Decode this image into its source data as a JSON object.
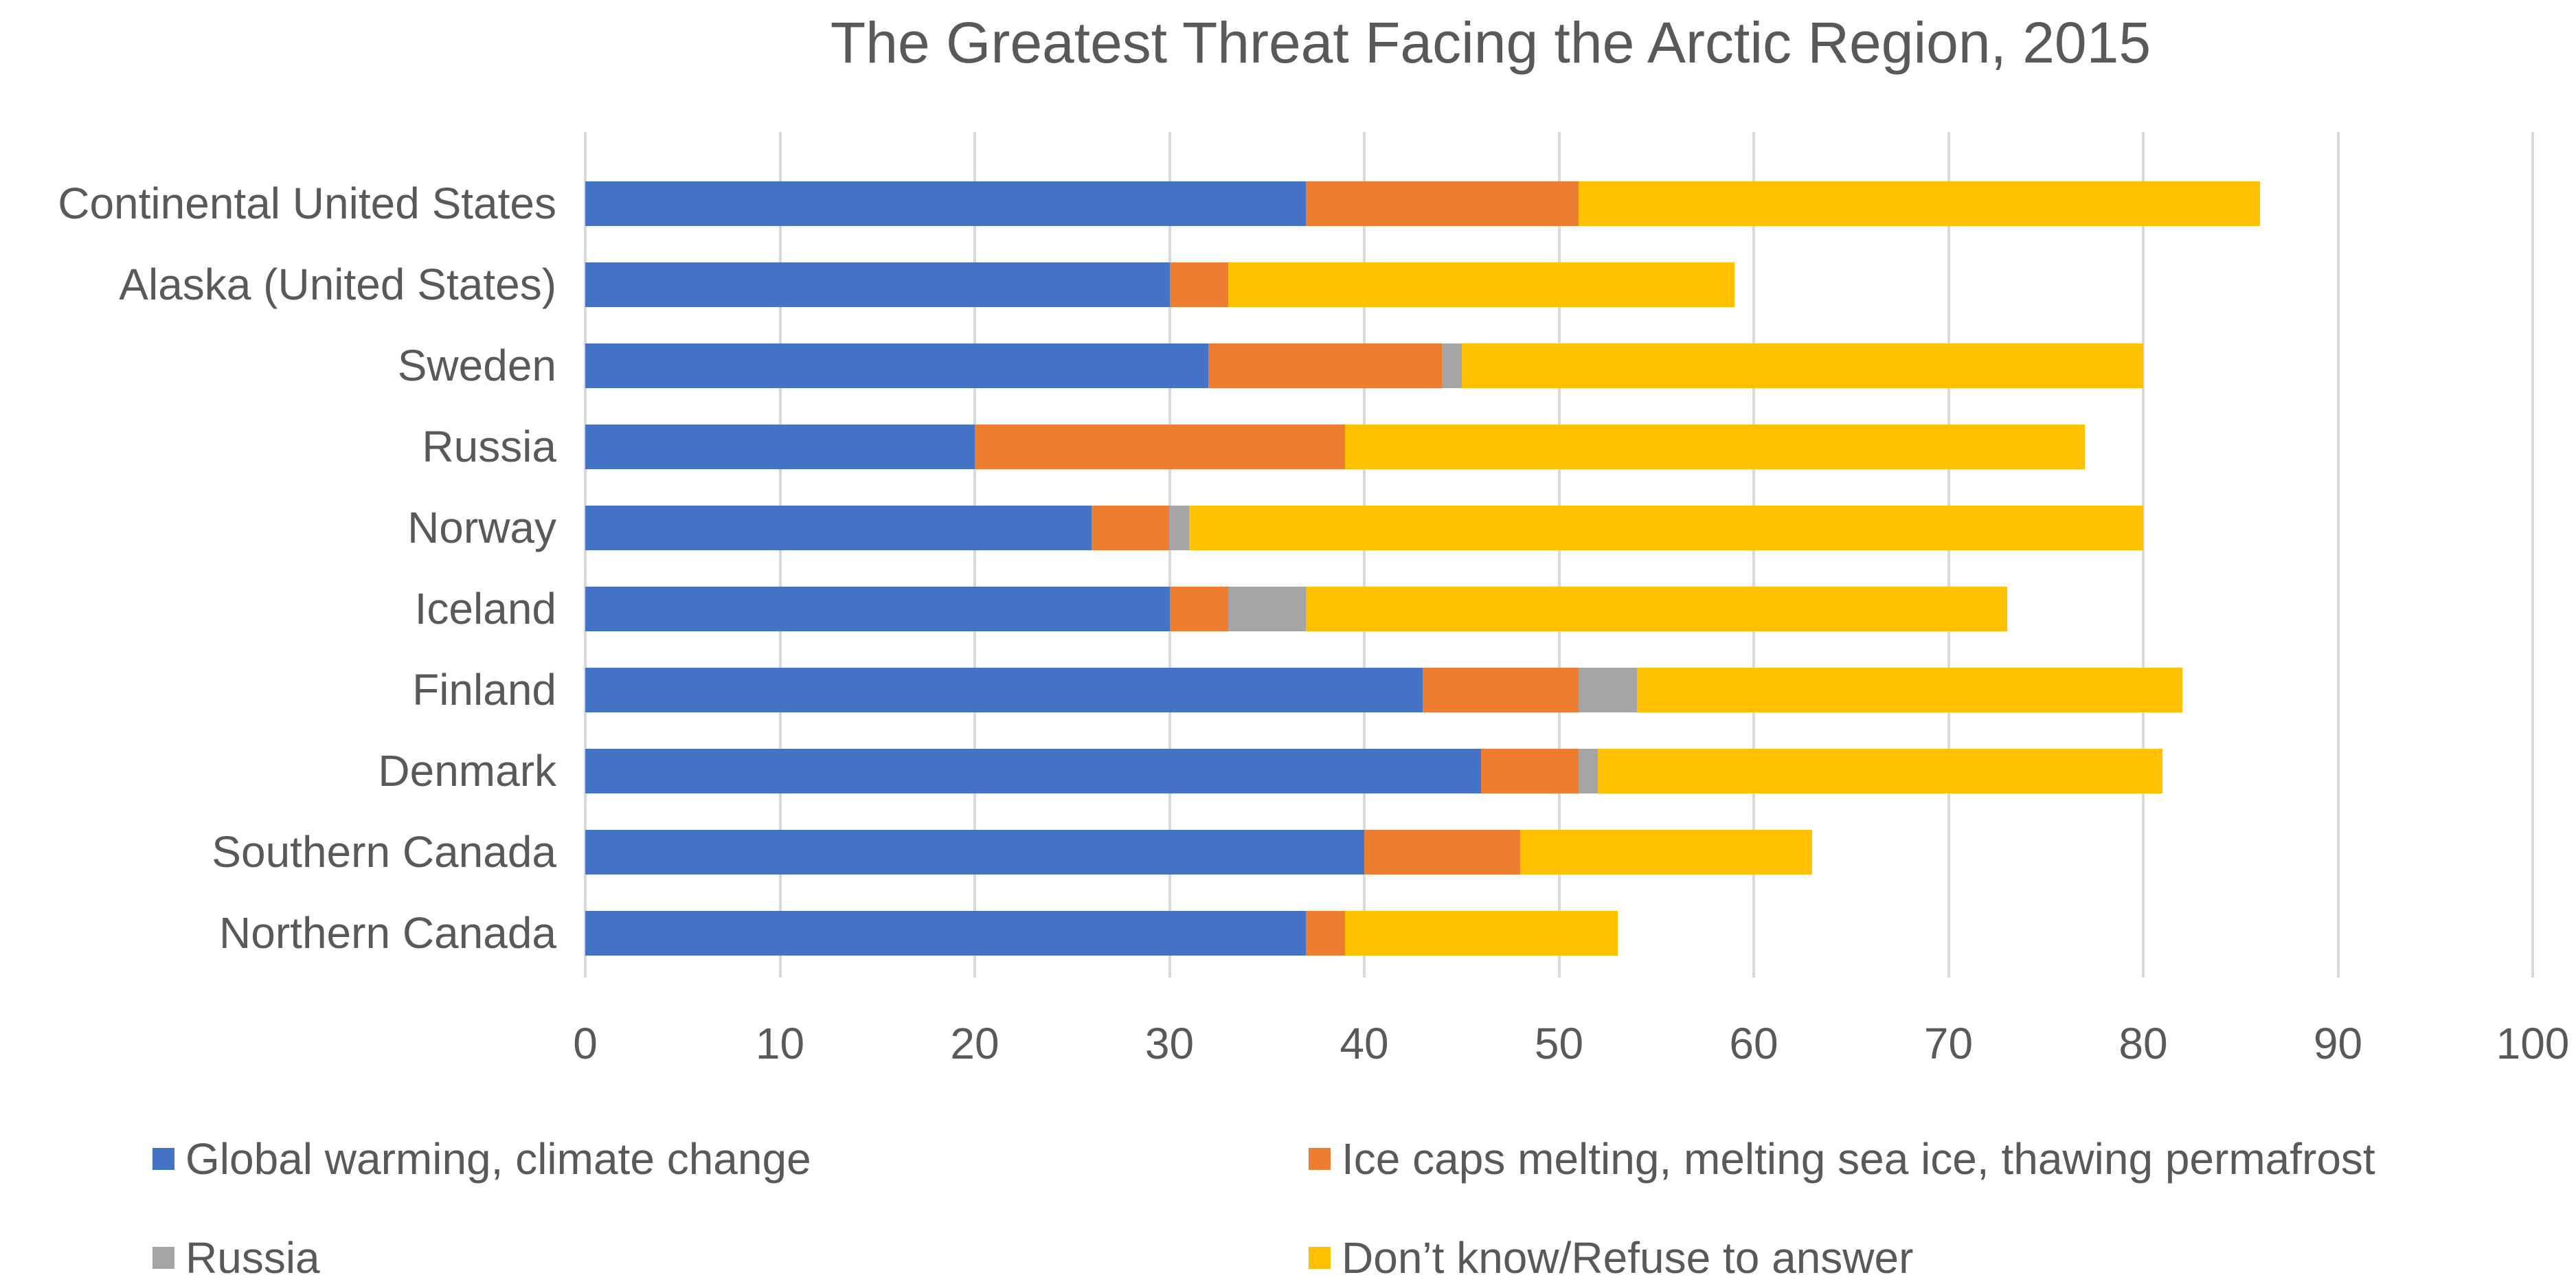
{
  "colors": {
    "background": "#FFFFFF",
    "grid": "#D9D9D9",
    "text": "#595959"
  },
  "chart_data": {
    "type": "bar",
    "stacked": true,
    "orientation": "horizontal",
    "title": "The Greatest Threat Facing the Arctic Region, 2015",
    "categories": [
      "Continental United States",
      "Alaska (United States)",
      "Sweden",
      "Russia",
      "Norway",
      "Iceland",
      "Finland",
      "Denmark",
      "Southern Canada",
      "Northern Canada"
    ],
    "series": [
      {
        "name": "Global warming, climate change",
        "color": "#4472C4",
        "values": [
          37,
          30,
          32,
          20,
          26,
          30,
          43,
          46,
          40,
          37
        ]
      },
      {
        "name": "Ice caps melting, melting sea ice, thawing permafrost",
        "color": "#ED7D31",
        "values": [
          14,
          3,
          12,
          19,
          4,
          3,
          8,
          5,
          8,
          2
        ]
      },
      {
        "name": "Russia",
        "color": "#A5A5A5",
        "values": [
          0,
          0,
          1,
          0,
          1,
          4,
          3,
          1,
          0,
          0
        ]
      },
      {
        "name": "Don’t know/Refuse to answer",
        "color": "#FFC000",
        "values": [
          35,
          26,
          35,
          38,
          49,
          36,
          28,
          29,
          15,
          14
        ]
      }
    ],
    "xlabel": "",
    "ylabel": "",
    "xlim": [
      0,
      100
    ],
    "xticks": [
      0,
      10,
      20,
      30,
      40,
      50,
      60,
      70,
      80,
      90,
      100
    ],
    "grid": true,
    "legend_position": "bottom"
  }
}
